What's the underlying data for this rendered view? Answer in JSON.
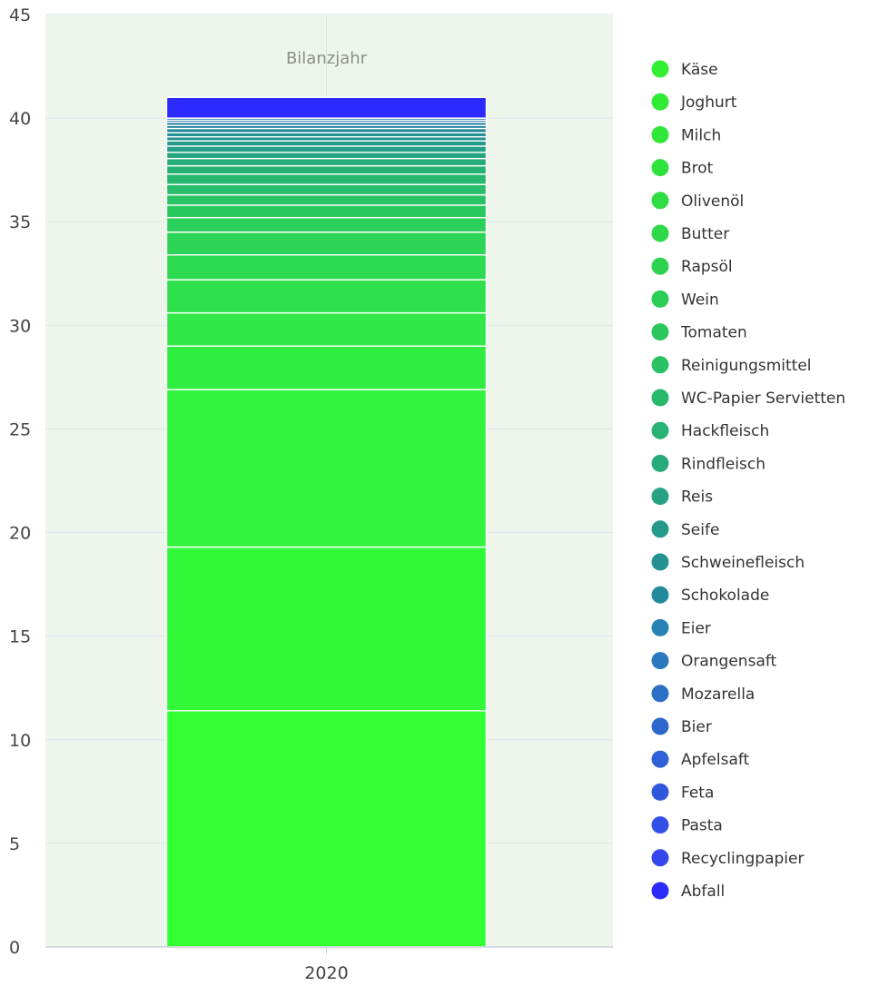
{
  "chart_data": {
    "type": "bar",
    "stacked": true,
    "categories": [
      "2020"
    ],
    "annotation": "Bilanzjahr",
    "ylim": [
      0,
      45
    ],
    "yticks": [
      0,
      5,
      10,
      15,
      20,
      25,
      30,
      35,
      40,
      45
    ],
    "grid": true,
    "legend_position": "right",
    "background": "#eef6ec",
    "series": [
      {
        "name": "Käse",
        "values": [
          11.4
        ],
        "color": "#33ff33"
      },
      {
        "name": "Joghurt",
        "values": [
          7.9
        ],
        "color": "#31f938"
      },
      {
        "name": "Milch",
        "values": [
          7.6
        ],
        "color": "#31f33d"
      },
      {
        "name": "Brot",
        "values": [
          2.1
        ],
        "color": "#30ed42"
      },
      {
        "name": "Olivenöl",
        "values": [
          1.6
        ],
        "color": "#2fe747"
      },
      {
        "name": "Butter",
        "values": [
          1.6
        ],
        "color": "#2ee14c"
      },
      {
        "name": "Rapsöl",
        "values": [
          1.2
        ],
        "color": "#2ddb51"
      },
      {
        "name": "Wein",
        "values": [
          1.1
        ],
        "color": "#2cd556"
      },
      {
        "name": "Tomaten",
        "values": [
          0.7
        ],
        "color": "#2bcf5b"
      },
      {
        "name": "Reinigungsmittel",
        "values": [
          0.6
        ],
        "color": "#2ac960"
      },
      {
        "name": "WC-Papier Servietten",
        "values": [
          0.5
        ],
        "color": "#29c365"
      },
      {
        "name": "Hackfleisch",
        "values": [
          0.5
        ],
        "color": "#28bd6a"
      },
      {
        "name": "Rindfleisch",
        "values": [
          0.5
        ],
        "color": "#27b76f"
      },
      {
        "name": "Reis",
        "values": [
          0.4
        ],
        "color": "#26b174"
      },
      {
        "name": "Seife",
        "values": [
          0.35
        ],
        "color": "#25ab79"
      },
      {
        "name": "Schweinefleisch",
        "values": [
          0.3
        ],
        "color": "#24a57e"
      },
      {
        "name": "Schokolade",
        "values": [
          0.3
        ],
        "color": "#239f83"
      },
      {
        "name": "Eier",
        "values": [
          0.25
        ],
        "color": "#229988"
      },
      {
        "name": "Orangensaft",
        "values": [
          0.2
        ],
        "color": "#21938d"
      },
      {
        "name": "Mozarella",
        "values": [
          0.2
        ],
        "color": "#208d92"
      },
      {
        "name": "Bier",
        "values": [
          0.2
        ],
        "color": "#1f8797"
      },
      {
        "name": "Apfelsaft",
        "values": [
          0.15
        ],
        "color": "#1e819c"
      },
      {
        "name": "Feta",
        "values": [
          0.15
        ],
        "color": "#1d7ba1"
      },
      {
        "name": "Pasta",
        "values": [
          0.1
        ],
        "color": "#1c75a6"
      },
      {
        "name": "Recyclingpapier",
        "values": [
          0.1
        ],
        "color": "#1b6fab"
      },
      {
        "name": "Abfall",
        "values": [
          1.0
        ],
        "color": "#2b2bff"
      }
    ],
    "legend_colors": [
      "#33ee33",
      "#31ea36",
      "#31e63a",
      "#30e23e",
      "#2fdd43",
      "#2ed948",
      "#2dd34e",
      "#2ccd55",
      "#2bc75c",
      "#2ac063",
      "#29b96b",
      "#28b273",
      "#27aa7b",
      "#26a283",
      "#259a8b",
      "#249293",
      "#238a9b",
      "#2781b3",
      "#2a78bd",
      "#2c70c5",
      "#2e68cd",
      "#3060d5",
      "#3257dd",
      "#344fe5",
      "#3646ed",
      "#2b2bff"
    ]
  }
}
